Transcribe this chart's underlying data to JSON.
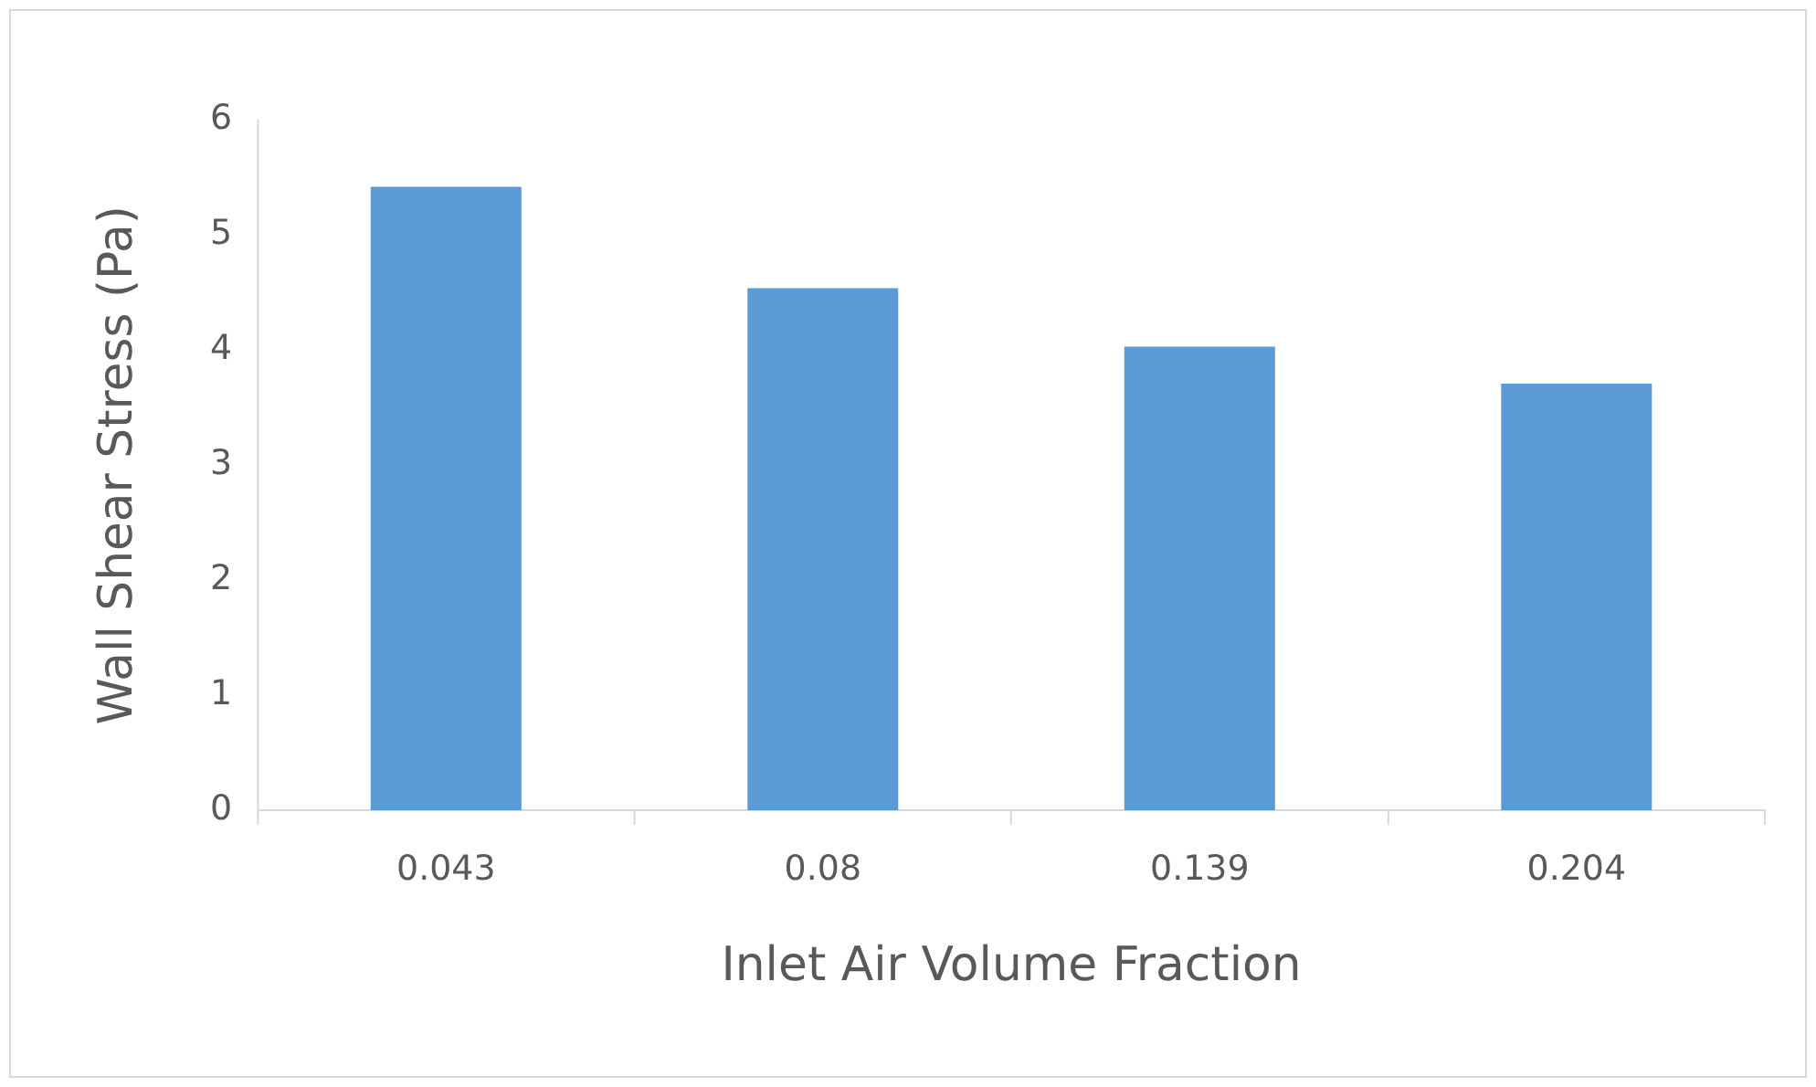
{
  "chart_data": {
    "type": "bar",
    "xlabel": "Inlet Air Volume Fraction",
    "ylabel": "Wall Shear Stress (Pa)",
    "categories": [
      "0.043",
      "0.08",
      "0.139",
      "0.204"
    ],
    "values": [
      5.42,
      4.54,
      4.03,
      3.71
    ],
    "color": "#5b9bd5",
    "ylim": [
      0,
      6
    ],
    "yticks": [
      0,
      1,
      2,
      3,
      4,
      5,
      6
    ],
    "grid": false,
    "legend": false
  }
}
